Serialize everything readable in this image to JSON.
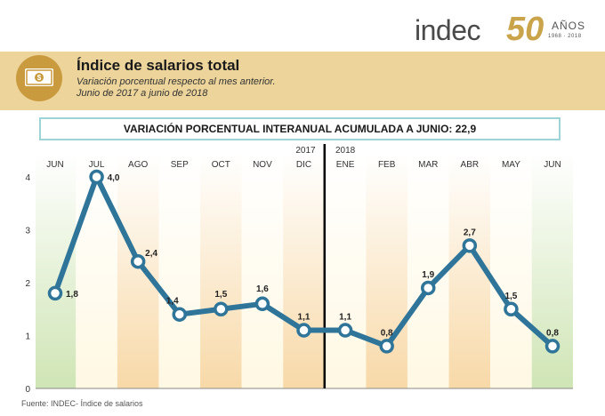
{
  "logo": {
    "brand": "indec",
    "number": "50",
    "anos": "AÑOS",
    "years": "1968 · 2018"
  },
  "header": {
    "icon": "money-bill-icon",
    "title": "Índice de salarios total",
    "subtitle_line1": "Variación porcentual respecto al mes anterior.",
    "subtitle_line2": "Junio de 2017 a junio de 2018"
  },
  "banner": "VARIACIÓN PORCENTUAL INTERANUAL ACUMULADA A JUNIO: 22,9",
  "chart_data": {
    "type": "line",
    "categories": [
      "JUN",
      "JUL",
      "AGO",
      "SEP",
      "OCT",
      "NOV",
      "DIC",
      "ENE",
      "FEB",
      "MAR",
      "ABR",
      "MAY",
      "JUN"
    ],
    "values": [
      1.8,
      4.0,
      2.4,
      1.4,
      1.5,
      1.6,
      1.1,
      1.1,
      0.8,
      1.9,
      2.7,
      1.5,
      0.8
    ],
    "value_labels": [
      "1,8",
      "4,0",
      "2,4",
      "1,4",
      "1,5",
      "1,6",
      "1,1",
      "1,1",
      "0,8",
      "1,9",
      "2,7",
      "1,5",
      "0,8"
    ],
    "year_labels": [
      "2017",
      "2018"
    ],
    "y_ticks": [
      "0",
      "1",
      "2",
      "3",
      "4"
    ],
    "ylim": [
      0,
      4
    ],
    "colors": {
      "line": "#2f7499",
      "band_light": "#fff8e3",
      "band_dark": "#f8d9a8",
      "band_green": "#cfe5b5",
      "marker_fill": "#ffffff",
      "divider": "#000000"
    }
  },
  "footer": "Fuente: INDEC- Índice de salarios"
}
